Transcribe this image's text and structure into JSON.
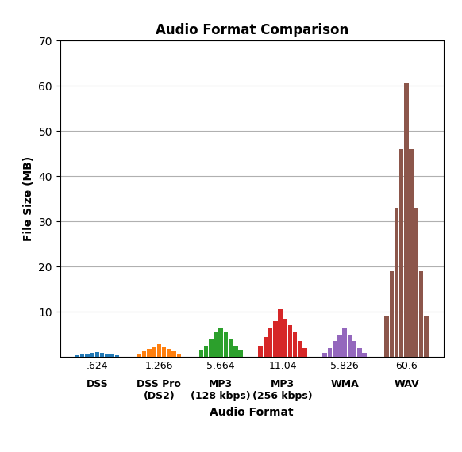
{
  "chart_data": {
    "type": "bar",
    "title": "Audio Format Comparison",
    "xlabel": "Audio Format",
    "ylabel": "File Size (MB)",
    "categories": [
      "DSS",
      "DSS Pro\n(DS2)",
      "MP3\n(128 kbps)",
      "MP3\n(256 kbps)",
      "WMA",
      "WAV"
    ],
    "sublabels": [
      ".624",
      "1.266",
      "5.664",
      "11.04",
      "5.826",
      "60.6"
    ],
    "values": [
      [
        0.4,
        0.6,
        0.8,
        1.0,
        1.1,
        1.0,
        0.8,
        0.6,
        0.4
      ],
      [
        0.8,
        1.2,
        1.8,
        2.4,
        2.8,
        2.4,
        1.8,
        1.2,
        0.8
      ],
      [
        1.5,
        2.5,
        4.0,
        5.5,
        6.5,
        5.5,
        4.0,
        2.5,
        1.5
      ],
      [
        2.5,
        4.5,
        6.5,
        8.0,
        10.5,
        8.5,
        7.0,
        5.5,
        3.5,
        2.0
      ],
      [
        1.0,
        2.0,
        3.5,
        5.0,
        6.5,
        5.0,
        3.5,
        2.0,
        1.0
      ],
      [
        9.0,
        19.0,
        33.0,
        46.0,
        60.6,
        46.0,
        33.0,
        19.0,
        9.0
      ]
    ],
    "ylim": [
      0,
      70
    ],
    "yticks": [
      10,
      20,
      30,
      40,
      50,
      60,
      70
    ],
    "grid": true
  }
}
